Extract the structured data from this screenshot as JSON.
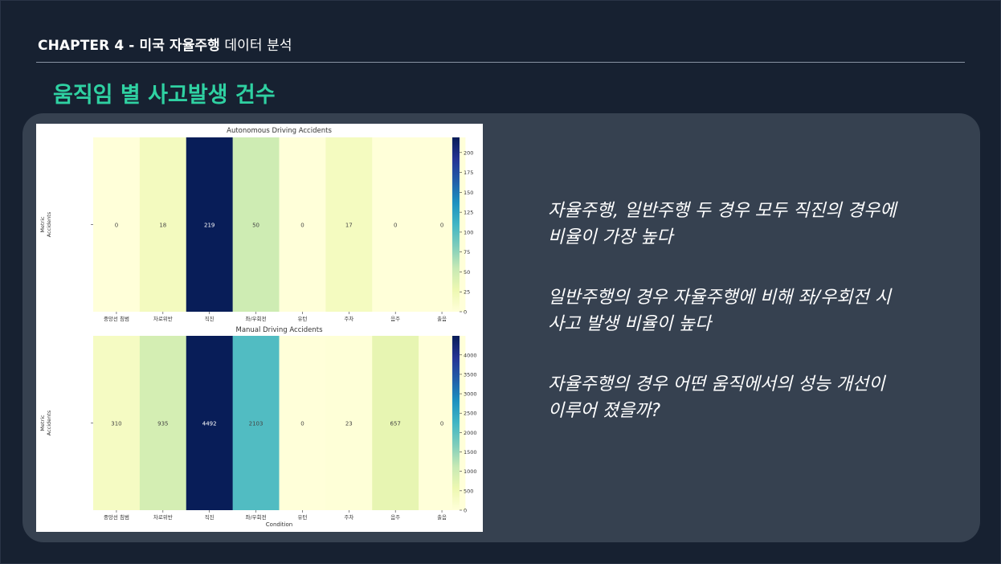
{
  "header": {
    "chapter_bold": "CHAPTER 4 - 미국 자율주행",
    "chapter_light": " 데이터 분석",
    "title": "움직임 별 사고발생 건수"
  },
  "bullets": [
    "자율주행, 일반주행 두 경우 모두 직진의 경우에\n비율이 가장 높다",
    "일반주행의 경우 자율주행에 비해 좌/우회전 시\n사고 발생 비율이 높다",
    "자율주행의 경우 어떤 움직에서의 성능 개선이\n이루어 졌을까?"
  ],
  "colors": {
    "background": "#172131",
    "panel": "#364150",
    "title": "#2fd1a2"
  },
  "chart_data": [
    {
      "type": "heatmap",
      "title": "Autonomous Driving Accidents",
      "ylabel": "Metric",
      "row_label": "Accidents",
      "categories": [
        "중앙선 침범",
        "차로위반",
        "직진",
        "좌/우회전",
        "유턴",
        "주차",
        "음주",
        "출음"
      ],
      "values": [
        0,
        18,
        219,
        50,
        0,
        17,
        0,
        0
      ],
      "colorbar": {
        "min": 0,
        "max": 219,
        "ticks": [
          0,
          25,
          50,
          75,
          100,
          125,
          150,
          175,
          200
        ],
        "colormap": "YlGnBu"
      }
    },
    {
      "type": "heatmap",
      "title": "Manual Driving Accidents",
      "xlabel": "Condition",
      "ylabel": "Metric",
      "row_label": "Accidents",
      "categories": [
        "중앙선 침범",
        "차로위반",
        "직진",
        "좌/우회전",
        "유턴",
        "주차",
        "음주",
        "출음"
      ],
      "values": [
        310,
        935,
        4492,
        2103,
        0,
        23,
        657,
        0
      ],
      "colorbar": {
        "min": 0,
        "max": 4492,
        "ticks": [
          0,
          500,
          1000,
          1500,
          2000,
          2500,
          3000,
          3500,
          4000
        ],
        "colormap": "YlGnBu"
      }
    }
  ]
}
